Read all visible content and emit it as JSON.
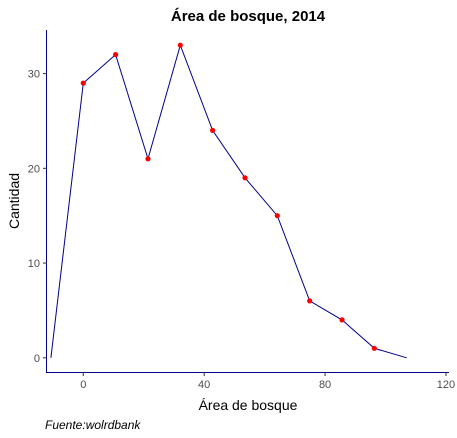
{
  "chart_data": {
    "type": "line",
    "title": "Área de bosque, 2014",
    "xlabel": "Área de bosque",
    "ylabel": "Cantidad",
    "caption": "Fuente:wolrdbank",
    "xlim": [
      -12,
      121
    ],
    "ylim": [
      -1.5,
      34.6
    ],
    "xticks": [
      0,
      40,
      80,
      120
    ],
    "yticks": [
      0,
      10,
      20,
      30
    ],
    "grid": false,
    "line_color": "#00008b",
    "point_color": "#ff0000",
    "x": [
      -10.7,
      0,
      10.7,
      21.4,
      32.1,
      42.8,
      53.5,
      64.2,
      74.9,
      85.6,
      96.3,
      107
    ],
    "y": [
      0,
      29,
      32,
      21,
      33,
      24,
      19,
      15,
      6,
      4,
      1,
      0
    ],
    "points_x": [
      0,
      10.7,
      21.4,
      32.1,
      42.8,
      53.5,
      64.2,
      74.9,
      85.6,
      96.3
    ],
    "points_y": [
      29,
      32,
      21,
      33,
      24,
      19,
      15,
      6,
      4,
      1
    ]
  }
}
